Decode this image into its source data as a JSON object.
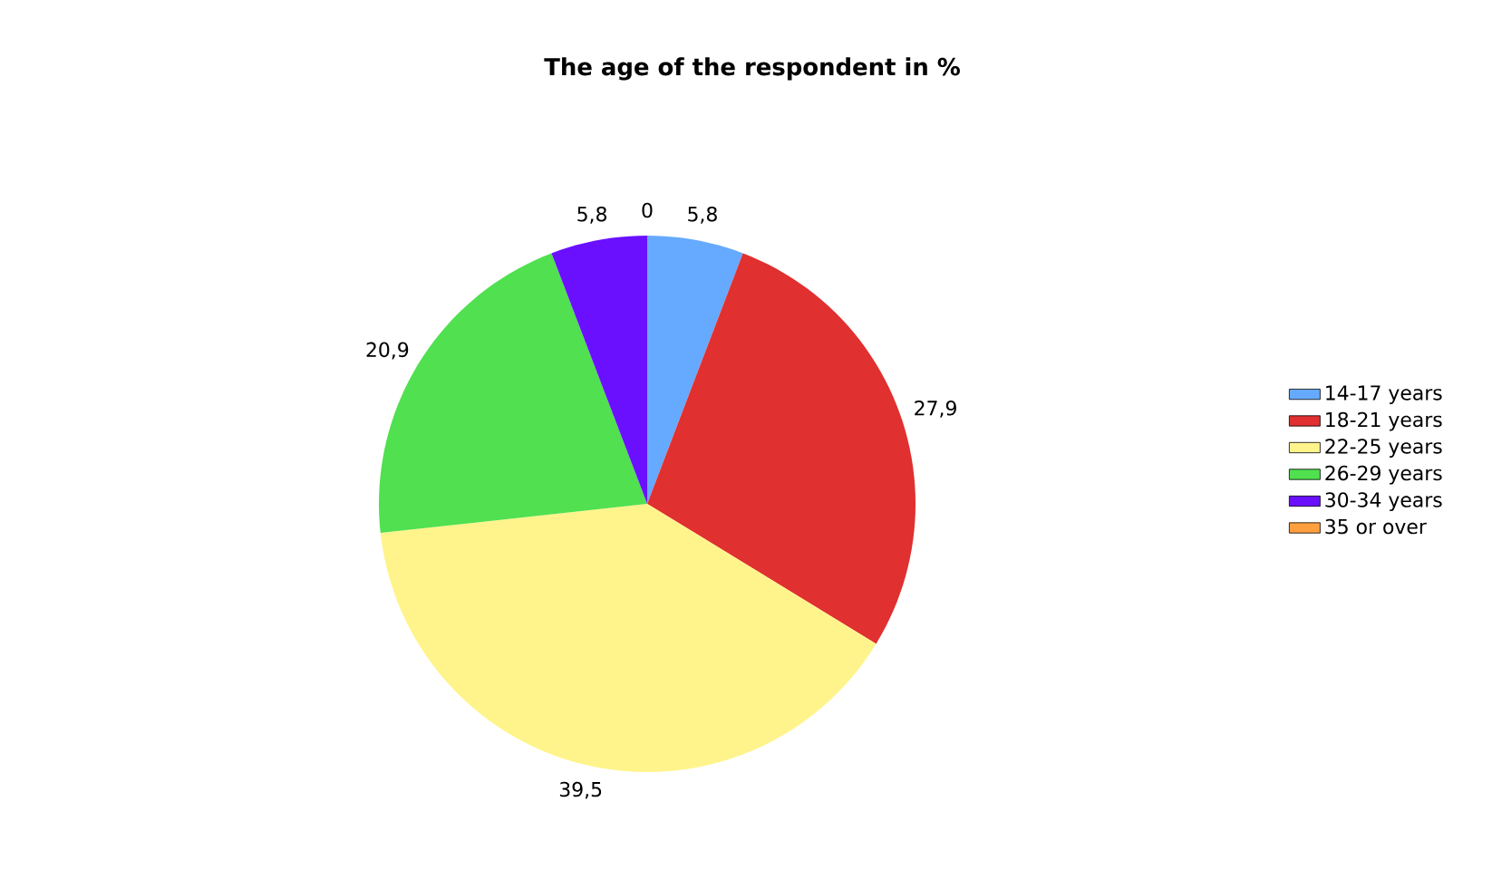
{
  "chart_data": {
    "type": "pie",
    "title": "The age of the respondent in %",
    "categories": [
      "14-17 years",
      "18-21 years",
      "22-25 years",
      "26-29 years",
      "30-34 years",
      "35 or over"
    ],
    "values": [
      5.8,
      27.9,
      39.5,
      20.9,
      5.8,
      0
    ],
    "value_labels": [
      "5,8",
      "27,9",
      "39,5",
      "20,9",
      "5,8",
      "0"
    ],
    "colors": [
      "#66aaff",
      "#e03030",
      "#fff48c",
      "#50e050",
      "#6a10ff",
      "#ffa040"
    ],
    "legend": "right"
  }
}
